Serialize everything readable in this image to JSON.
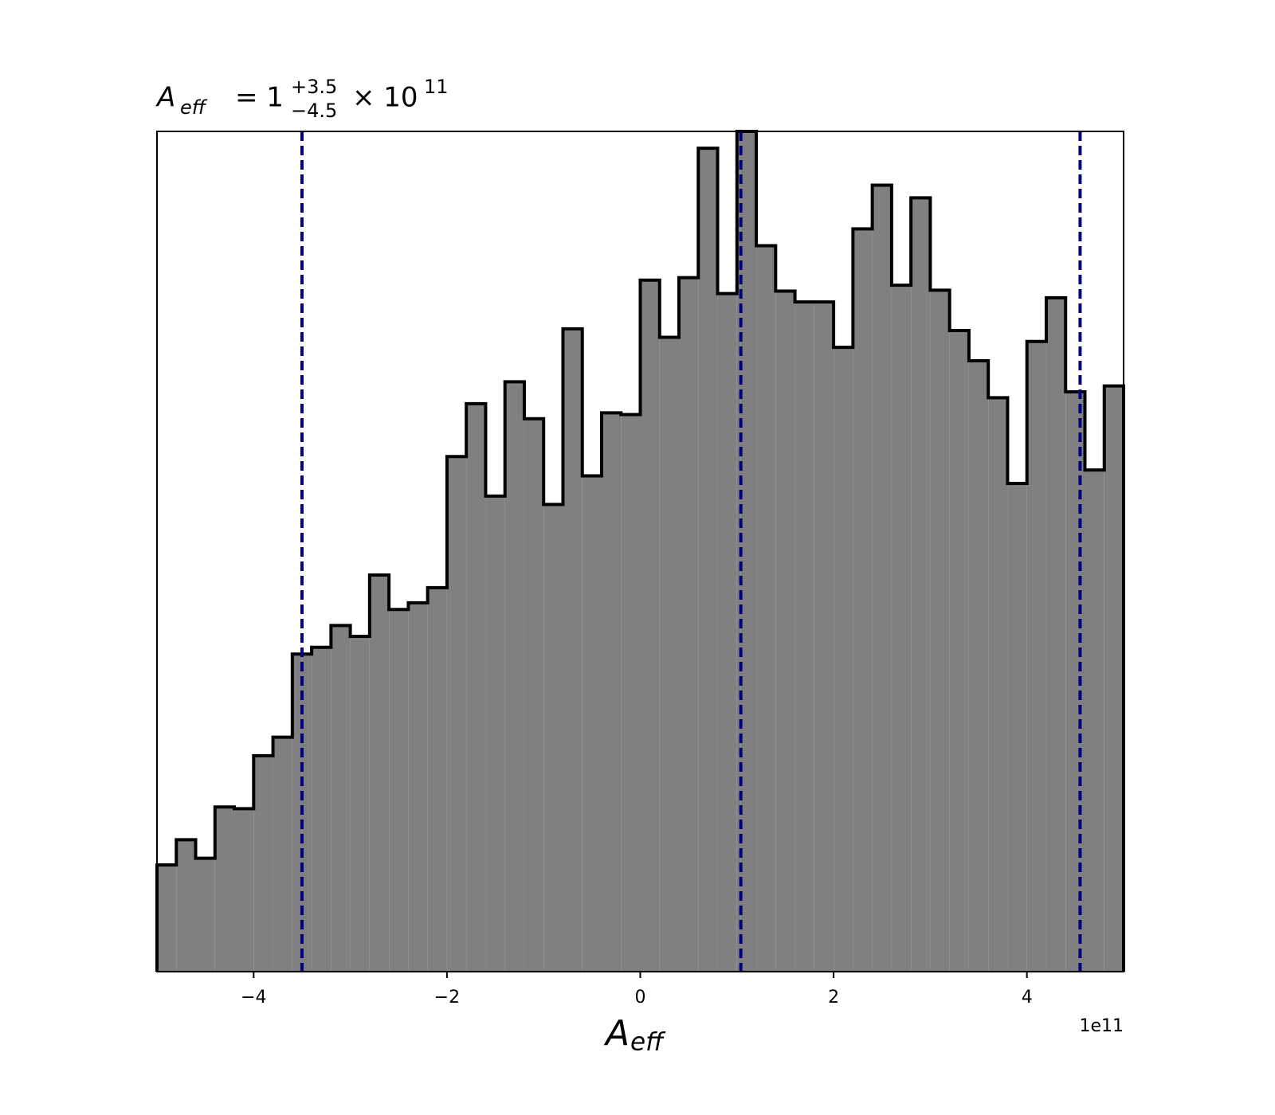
{
  "chart_data": {
    "type": "histogram",
    "title": {
      "symbol": "A",
      "subscript": "eff",
      "text": "= 1",
      "upper": "+3.5",
      "lower": "−4.5",
      "times": "× 10",
      "exponent": "11"
    },
    "xlabel": {
      "symbol": "A",
      "subscript": "eff"
    },
    "offset_text": "1e11",
    "bins": [
      -5,
      -4.8,
      -4.6,
      -4.4,
      -4.2,
      -4,
      -3.8,
      -3.6,
      -3.4,
      -3.2,
      -3,
      -2.8,
      -2.6,
      -2.4,
      -2.2,
      -2,
      -1.8,
      -1.6,
      -1.4,
      -1.2,
      -1,
      -0.8,
      -0.6,
      -0.4,
      -0.2,
      0,
      0.2,
      0.4,
      0.6,
      0.8,
      1,
      1.2,
      1.4,
      1.6,
      1.8,
      2,
      2.2,
      2.4,
      2.6,
      2.8,
      3,
      3.2,
      3.4,
      3.6,
      3.8,
      4,
      4.2,
      4.4,
      4.6,
      4.8,
      5
    ],
    "values": [
      12.7,
      15.7,
      13.5,
      19.6,
      19.4,
      25.7,
      27.9,
      37.8,
      38.6,
      41.2,
      39.9,
      47.2,
      43.1,
      43.9,
      45.7,
      61.3,
      67.6,
      56.6,
      70.2,
      65.8,
      55.6,
      76.5,
      59.0,
      66.5,
      66.3,
      82.3,
      75.5,
      82.6,
      98.0,
      80.7,
      100,
      86.4,
      81.0,
      79.7,
      79.7,
      74.3,
      88.4,
      93.6,
      81.7,
      92.1,
      81.1,
      76.3,
      72.7,
      68.3,
      58.1,
      75.0,
      80.2,
      69.0,
      59.7,
      69.7
    ],
    "color": "#808080",
    "edgecolor": "#000000",
    "vlines": [
      -3.5,
      1.04,
      4.55
    ],
    "vline_color": "#000080",
    "xlim": [
      -5,
      5
    ],
    "ylim": [
      0,
      100
    ],
    "xticks": [
      {
        "value": -4,
        "label": "−4"
      },
      {
        "value": -2,
        "label": "−2"
      },
      0,
      2,
      4
    ]
  }
}
